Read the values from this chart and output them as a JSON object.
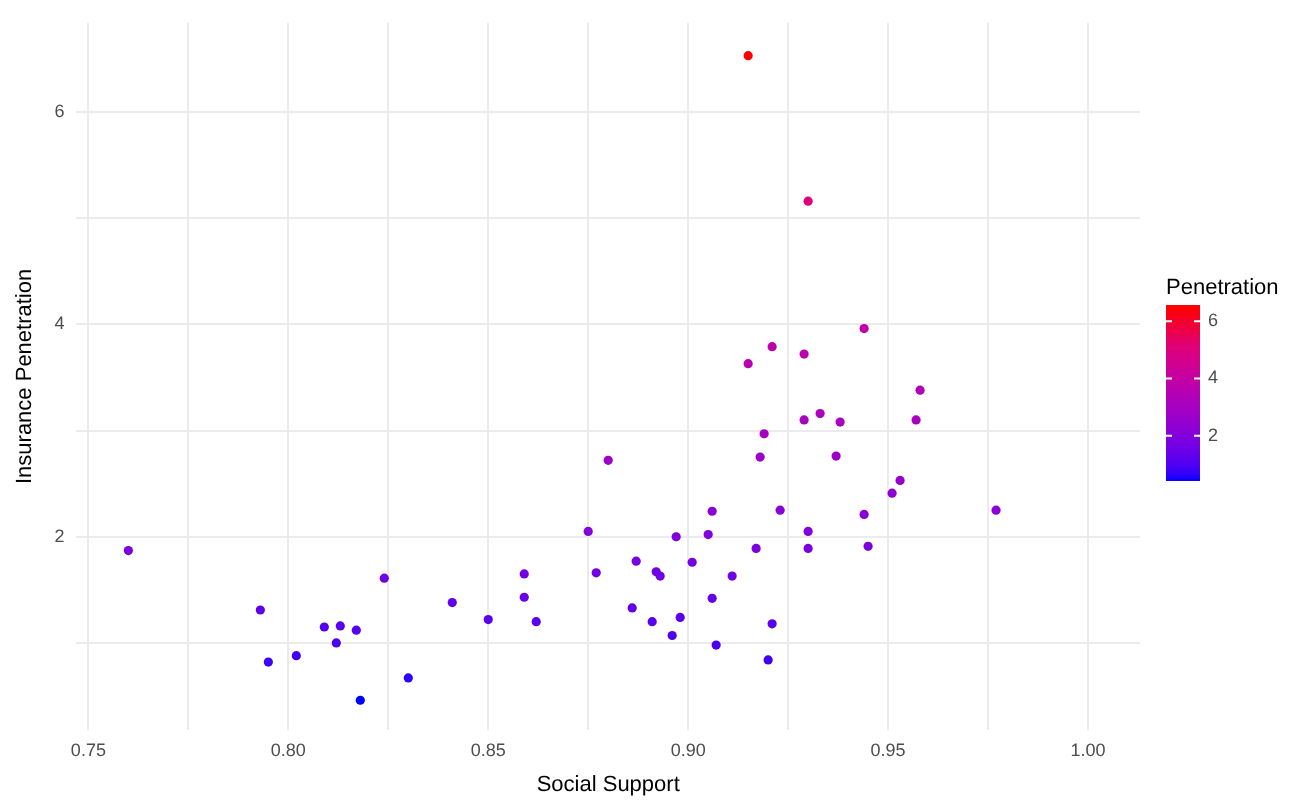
{
  "chart_data": {
    "type": "scatter",
    "xlabel": "Social Support",
    "ylabel": "Insurance Penetration",
    "clabel": "Penetration",
    "x": [
      0.76,
      0.793,
      0.795,
      0.802,
      0.809,
      0.813,
      0.812,
      0.817,
      0.818,
      0.824,
      0.83,
      0.841,
      0.85,
      0.859,
      0.859,
      0.862,
      0.875,
      0.877,
      0.88,
      0.887,
      0.886,
      0.891,
      0.892,
      0.893,
      0.896,
      0.897,
      0.898,
      0.901,
      0.905,
      0.906,
      0.906,
      0.907,
      0.911,
      0.917,
      0.918,
      0.919,
      0.92,
      0.921,
      0.923,
      0.929,
      0.93,
      0.93,
      0.933,
      0.937,
      0.938,
      0.944,
      0.945,
      0.951,
      0.953,
      0.957,
      0.958,
      0.977,
      0.915,
      0.93,
      0.944,
      0.921,
      0.915,
      0.929
    ],
    "values": [
      1.87,
      1.31,
      0.82,
      0.88,
      1.15,
      1.16,
      1.0,
      1.12,
      0.46,
      1.61,
      0.67,
      1.38,
      1.22,
      1.65,
      1.43,
      1.2,
      2.05,
      1.66,
      2.72,
      1.77,
      1.33,
      1.2,
      1.67,
      1.63,
      1.07,
      2.0,
      1.24,
      1.76,
      2.02,
      2.24,
      1.42,
      0.98,
      1.63,
      1.89,
      2.75,
      2.97,
      0.84,
      1.18,
      2.25,
      3.1,
      2.05,
      1.89,
      3.16,
      2.76,
      3.08,
      2.21,
      1.91,
      2.41,
      2.53,
      3.1,
      3.38,
      2.25,
      6.53,
      5.16,
      3.96,
      3.79,
      3.63,
      3.72
    ],
    "cvalues": [
      1.87,
      1.31,
      0.82,
      0.88,
      1.15,
      1.16,
      1.0,
      1.12,
      0.46,
      1.61,
      0.67,
      1.38,
      1.22,
      1.65,
      1.43,
      1.2,
      2.05,
      1.66,
      2.72,
      1.77,
      1.33,
      1.2,
      1.67,
      1.63,
      1.07,
      2.0,
      1.24,
      1.76,
      2.02,
      2.24,
      1.42,
      0.98,
      1.63,
      1.89,
      2.75,
      2.97,
      0.84,
      1.18,
      2.25,
      3.1,
      2.05,
      1.89,
      3.16,
      2.76,
      3.08,
      2.21,
      1.91,
      2.41,
      2.53,
      3.1,
      3.38,
      2.25,
      6.53,
      5.16,
      3.96,
      3.79,
      3.63,
      3.72
    ],
    "colors": [
      "#7b00df",
      "#5f00ec",
      "#3e00f7",
      "#4300f6",
      "#5600f0",
      "#5700f0",
      "#4c00f3",
      "#5400f1",
      "#0000ff",
      "#6f00e6",
      "#2f00fb",
      "#6300eb",
      "#5a00ef",
      "#7100e5",
      "#6600ea",
      "#5900ef",
      "#8300db",
      "#7100e4",
      "#9c00ca",
      "#7600e2",
      "#6100ec",
      "#5900ef",
      "#7100e5",
      "#7000e5",
      "#5100f2",
      "#8000dc",
      "#5b00ee",
      "#7600e2",
      "#8100dc",
      "#8a00d6",
      "#6500ea",
      "#4b00f4",
      "#7000e5",
      "#7c00df",
      "#9d00c9",
      "#a400c3",
      "#4000f7",
      "#5800ef",
      "#8a00d6",
      "#a800c0",
      "#8300db",
      "#7c00df",
      "#aa00be",
      "#9d00c9",
      "#a800c0",
      "#8900d7",
      "#7d00de",
      "#9100d2",
      "#9500cf",
      "#a800c0",
      "#b100b8",
      "#8a00d6",
      "#ff0000",
      "#e00079",
      "#c200a6",
      "#bd00ab",
      "#b800b0",
      "#bb00ae"
    ],
    "clim": [
      0.46,
      6.53
    ],
    "cticks": [
      2,
      4,
      6
    ],
    "xlim": [
      0.747,
      1.013
    ],
    "xticks": [
      0.75,
      {
        "value": 0.775,
        "label": null
      },
      {
        "value": 0.8,
        "label": "0.80"
      },
      {
        "value": 0.825,
        "label": null
      },
      0.85,
      {
        "value": 0.875,
        "label": null
      },
      {
        "value": 0.9,
        "label": "0.90"
      },
      {
        "value": 0.925,
        "label": null
      },
      0.95,
      {
        "value": 0.975,
        "label": null
      },
      {
        "value": 1,
        "label": "1.00"
      }
    ],
    "ylim": [
      0.18,
      6.84
    ],
    "yticks": [
      {
        "value": 1,
        "label": null
      },
      2,
      {
        "value": 3,
        "label": null
      },
      4,
      {
        "value": 5,
        "label": null
      },
      6
    ],
    "grid": true,
    "marker": "circle",
    "legend": false
  }
}
